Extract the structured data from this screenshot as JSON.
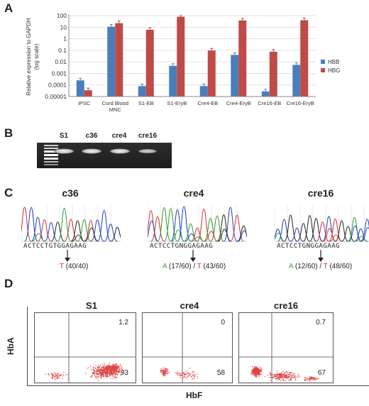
{
  "panels": {
    "a": "A",
    "b": "B",
    "c": "C",
    "d": "D"
  },
  "chart_data": {
    "type": "bar",
    "ylabel": "Relative expression to GAPDH (log scale)",
    "ylabel_line1": "Relative expression to GAPDH",
    "ylabel_line2": "(log scale)",
    "log_scale": true,
    "ylim": [
      1e-05,
      100
    ],
    "ytick_labels": [
      "0.00001",
      "0.0001",
      "0.001",
      "0.01",
      "0.1",
      "1",
      "10",
      "100"
    ],
    "categories": [
      "iPSC",
      "Cord Blood MNC",
      "S1-EB",
      "S1-EryB",
      "Cre4-EB",
      "Cre4-EryB",
      "Cre16-EB",
      "Cre16-EryB"
    ],
    "categories_lines": [
      [
        "iPSC"
      ],
      [
        "Cord Blood",
        "MNC"
      ],
      [
        "S1-EB"
      ],
      [
        "S1-EryB"
      ],
      [
        "Cre4-EB"
      ],
      [
        "Cre4-EryB"
      ],
      [
        "Cre16-EB"
      ],
      [
        "Cre16-EryB"
      ]
    ],
    "series": [
      {
        "name": "HBB",
        "color": "#4a7ebb",
        "values": [
          0.00025,
          11,
          8e-05,
          0.0045,
          8e-05,
          0.04,
          2.8e-05,
          0.0055
        ]
      },
      {
        "name": "HBG",
        "color": "#be4b48",
        "values": [
          3.5e-05,
          22,
          6,
          80,
          0.095,
          38,
          0.075,
          40
        ]
      }
    ],
    "legend_position": "right"
  },
  "gel": {
    "lanes": [
      "S1",
      "c36",
      "cre4",
      "cre16"
    ]
  },
  "sequencing": {
    "sequence_letters": [
      "A",
      "C",
      "T",
      "C",
      "C",
      "T",
      "G",
      "T",
      "G",
      "G",
      "A",
      "G",
      "A",
      "A",
      "G"
    ],
    "sequence_letters_n": [
      "A",
      "C",
      "T",
      "C",
      "C",
      "T",
      "G",
      "N",
      "G",
      "G",
      "A",
      "G",
      "A",
      "A",
      "G"
    ],
    "samples": [
      {
        "title": "c36",
        "allele1": "",
        "sep": "",
        "allele2": "T",
        "count2": " (40/40)"
      },
      {
        "title": "cre4",
        "allele1": "A",
        "count1": " (17/60) / ",
        "allele2": "T",
        "count2": " (43/60)"
      },
      {
        "title": "cre16",
        "allele1": "A",
        "count1": " (12/60) / ",
        "allele2": "T",
        "count2": " (48/60)"
      }
    ]
  },
  "flow": {
    "yaxis": "HbA",
    "xaxis": "HbF",
    "plots": [
      {
        "title": "S1",
        "upper_right": "1.2",
        "lower_right": "93"
      },
      {
        "title": "cre4",
        "upper_right": "0",
        "lower_right": "58"
      },
      {
        "title": "cre16",
        "upper_right": "0.7",
        "lower_right": "67"
      }
    ]
  },
  "colors": {
    "hbb": "#4a7ebb",
    "hbg": "#be4b48",
    "green": "#3aa53a",
    "red": "#c0392b"
  }
}
